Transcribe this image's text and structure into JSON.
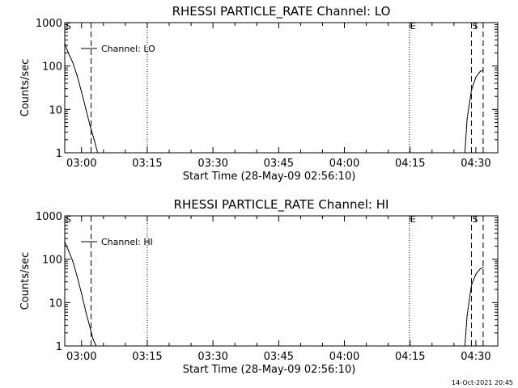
{
  "chart_data": [
    {
      "type": "line",
      "title": "RHESSI PARTICLE_RATE Channel: LO",
      "xlabel": "Start Time (28-May-09 02:56:10)",
      "ylabel": "Counts/sec",
      "yscale": "log",
      "ylim": [
        1,
        1000
      ],
      "xlim": [
        "02:56:10",
        "04:35:00"
      ],
      "xticks": [
        "03:00",
        "03:15",
        "03:30",
        "03:45",
        "04:00",
        "04:15",
        "04:30"
      ],
      "yticks": [
        "1",
        "10",
        "100",
        "1000"
      ],
      "legend": {
        "label": "Channel: LO",
        "position": "top-left"
      },
      "flags": [
        {
          "label": "S",
          "time": "02:56:10",
          "style": "dotted"
        },
        {
          "label": "",
          "time": "03:02:10",
          "style": "dashed"
        },
        {
          "label": "",
          "time": "03:15:00",
          "style": "dotted"
        },
        {
          "label": "E",
          "time": "04:14:50",
          "style": "dotted"
        },
        {
          "label": "S",
          "time": "04:29:00",
          "style": "dashed"
        },
        {
          "label": "",
          "time": "04:31:40",
          "style": "dashed"
        }
      ],
      "series": [
        {
          "x": [
            "02:56:10",
            "02:57:00",
            "02:58:00",
            "02:59:00",
            "03:00:00",
            "03:01:00",
            "03:02:00",
            "03:03:00",
            "03:03:40",
            "04:27:30",
            "04:28:00",
            "04:29:00",
            "04:30:00",
            "04:31:00",
            "04:31:40"
          ],
          "y": [
            330,
            200,
            120,
            60,
            25,
            10,
            4,
            1.8,
            1,
            1,
            6,
            28,
            55,
            75,
            80
          ]
        }
      ]
    },
    {
      "type": "line",
      "title": "RHESSI PARTICLE_RATE Channel: HI",
      "xlabel": "Start Time (28-May-09 02:56:10)",
      "ylabel": "Counts/sec",
      "yscale": "log",
      "ylim": [
        1,
        1000
      ],
      "xlim": [
        "02:56:10",
        "04:35:00"
      ],
      "xticks": [
        "03:00",
        "03:15",
        "03:30",
        "03:45",
        "04:00",
        "04:15",
        "04:30"
      ],
      "yticks": [
        "1",
        "10",
        "100",
        "1000"
      ],
      "legend": {
        "label": "Channel: HI",
        "position": "top-left"
      },
      "flags": [
        {
          "label": "S",
          "time": "02:56:10",
          "style": "dotted"
        },
        {
          "label": "",
          "time": "03:02:10",
          "style": "dashed"
        },
        {
          "label": "",
          "time": "03:15:00",
          "style": "dotted"
        },
        {
          "label": "E",
          "time": "04:14:50",
          "style": "dotted"
        },
        {
          "label": "S",
          "time": "04:29:00",
          "style": "dashed"
        },
        {
          "label": "",
          "time": "04:31:40",
          "style": "dashed"
        }
      ],
      "series": [
        {
          "x": [
            "02:56:10",
            "02:57:00",
            "02:58:00",
            "02:59:00",
            "03:00:00",
            "03:01:00",
            "03:02:00",
            "03:02:40",
            "03:03:20",
            "04:27:30",
            "04:28:00",
            "04:29:00",
            "04:30:00",
            "04:31:00",
            "04:31:40"
          ],
          "y": [
            250,
            160,
            90,
            40,
            16,
            6,
            2.5,
            1.4,
            1,
            1,
            5,
            25,
            45,
            60,
            65
          ]
        }
      ]
    }
  ],
  "timestamp": "14-Oct-2021 20:45"
}
